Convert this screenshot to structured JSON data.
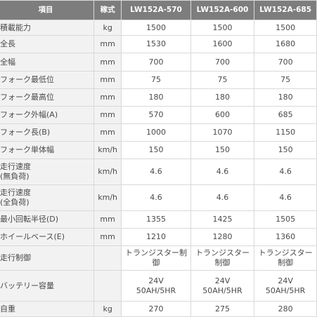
{
  "table": {
    "headers": [
      "項目",
      "稼式",
      "LW152A-570",
      "LW152A-600",
      "LW152A-685"
    ],
    "rows": [
      {
        "item": "積載能力",
        "unit": "kg",
        "values": [
          "1500",
          "1500",
          "1500"
        ]
      },
      {
        "item": "全長",
        "unit": "mm",
        "values": [
          "1530",
          "1600",
          "1680"
        ]
      },
      {
        "item": "全幅",
        "unit": "mm",
        "values": [
          "700",
          "700",
          "700"
        ]
      },
      {
        "item": "フォーク最低位",
        "unit": "mm",
        "values": [
          "75",
          "75",
          "75"
        ]
      },
      {
        "item": "フォーク最高位",
        "unit": "mm",
        "values": [
          "180",
          "180",
          "180"
        ]
      },
      {
        "item": "フォーク外幅(A)",
        "unit": "mm",
        "values": [
          "570",
          "600",
          "685"
        ]
      },
      {
        "item": "フォーク長(B)",
        "unit": "mm",
        "values": [
          "1000",
          "1070",
          "1150"
        ]
      },
      {
        "item": "フォーク単体幅",
        "unit": "km/h",
        "values": [
          "150",
          "150",
          "150"
        ]
      },
      {
        "item": "走行速度\n(無負荷)",
        "unit": "km/h",
        "values": [
          "4.6",
          "4.6",
          "4.6"
        ]
      },
      {
        "item": "走行速度\n(全負荷)",
        "unit": "km/h",
        "values": [
          "4.6",
          "4.6",
          "4.6"
        ]
      },
      {
        "item": "最小回転半径(D)",
        "unit": "mm",
        "values": [
          "1355",
          "1425",
          "1505"
        ]
      },
      {
        "item": "ホイールベース(E)",
        "unit": "mm",
        "values": [
          "1210",
          "1280",
          "1360"
        ]
      },
      {
        "item": "走行制御",
        "unit": "",
        "values": [
          "トランジスター制御",
          "トランジスター制御",
          "トランジスター制御"
        ]
      },
      {
        "item": "バッテリー容量",
        "unit": "",
        "values": [
          "24V\n50AH/5HR",
          "24V\n50AH/5HR",
          "24V\n50AH/5HR"
        ]
      },
      {
        "item": "自重",
        "unit": "kg",
        "values": [
          "270",
          "275",
          "280"
        ]
      }
    ]
  }
}
